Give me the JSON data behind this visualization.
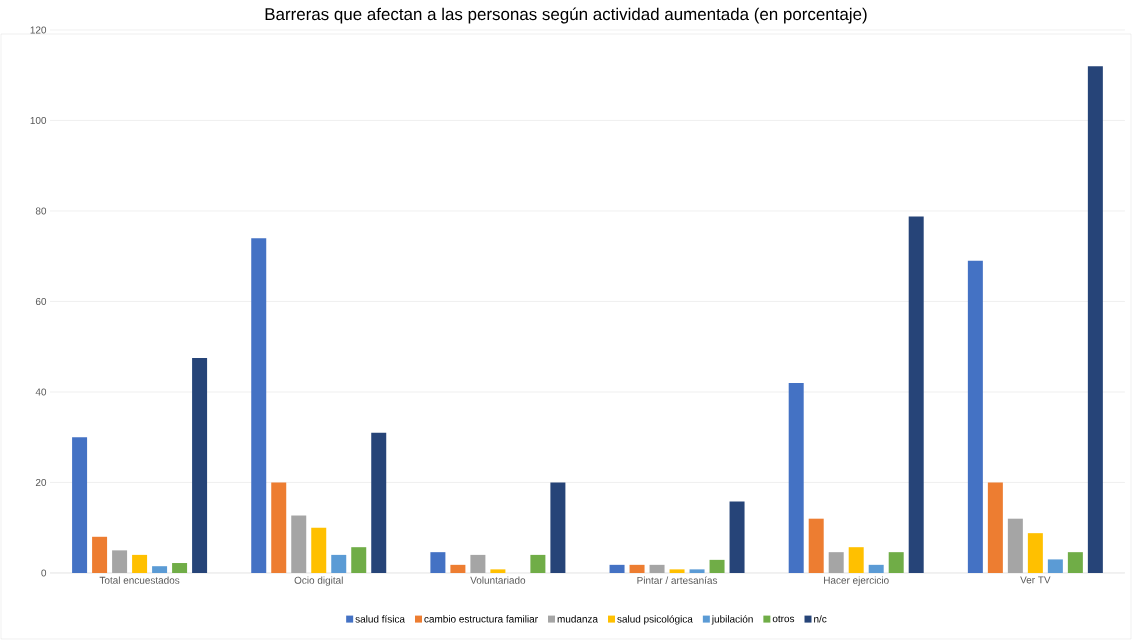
{
  "chart_data": {
    "type": "bar",
    "title": "Barreras que afectan a las personas según actividad aumentada (en porcentaje)",
    "categories": [
      "Total encuestados",
      "Ocio digital",
      "Voluntariado",
      "Pintar / artesanías",
      "Hacer ejercicio",
      "Ver TV"
    ],
    "series": [
      {
        "name": "salud física",
        "color": "#4472c4",
        "values": [
          30,
          74,
          4.6,
          1.8,
          42,
          69
        ]
      },
      {
        "name": "cambio estructura familiar",
        "color": "#ed7d31",
        "values": [
          8,
          20,
          1.8,
          1.8,
          12,
          20
        ]
      },
      {
        "name": "mudanza",
        "color": "#a5a5a5",
        "values": [
          5,
          12.7,
          4,
          1.8,
          4.6,
          12
        ]
      },
      {
        "name": "salud psicológica",
        "color": "#ffc000",
        "values": [
          4,
          10,
          0.8,
          0.8,
          5.7,
          8.8
        ]
      },
      {
        "name": "jubilación",
        "color": "#5b9bd5",
        "values": [
          1.5,
          4,
          0,
          0.8,
          1.8,
          3
        ]
      },
      {
        "name": "otros",
        "color": "#70ad47",
        "values": [
          2.2,
          5.7,
          4,
          2.9,
          4.6,
          4.6
        ]
      },
      {
        "name": "n/c",
        "color": "#264478",
        "values": [
          47.5,
          31,
          20,
          15.8,
          78.8,
          112
        ]
      }
    ],
    "ylim": [
      0,
      120
    ],
    "yticks": [
      0,
      20,
      40,
      60,
      80,
      100,
      120
    ],
    "grid": "y",
    "legend": "bottom"
  }
}
